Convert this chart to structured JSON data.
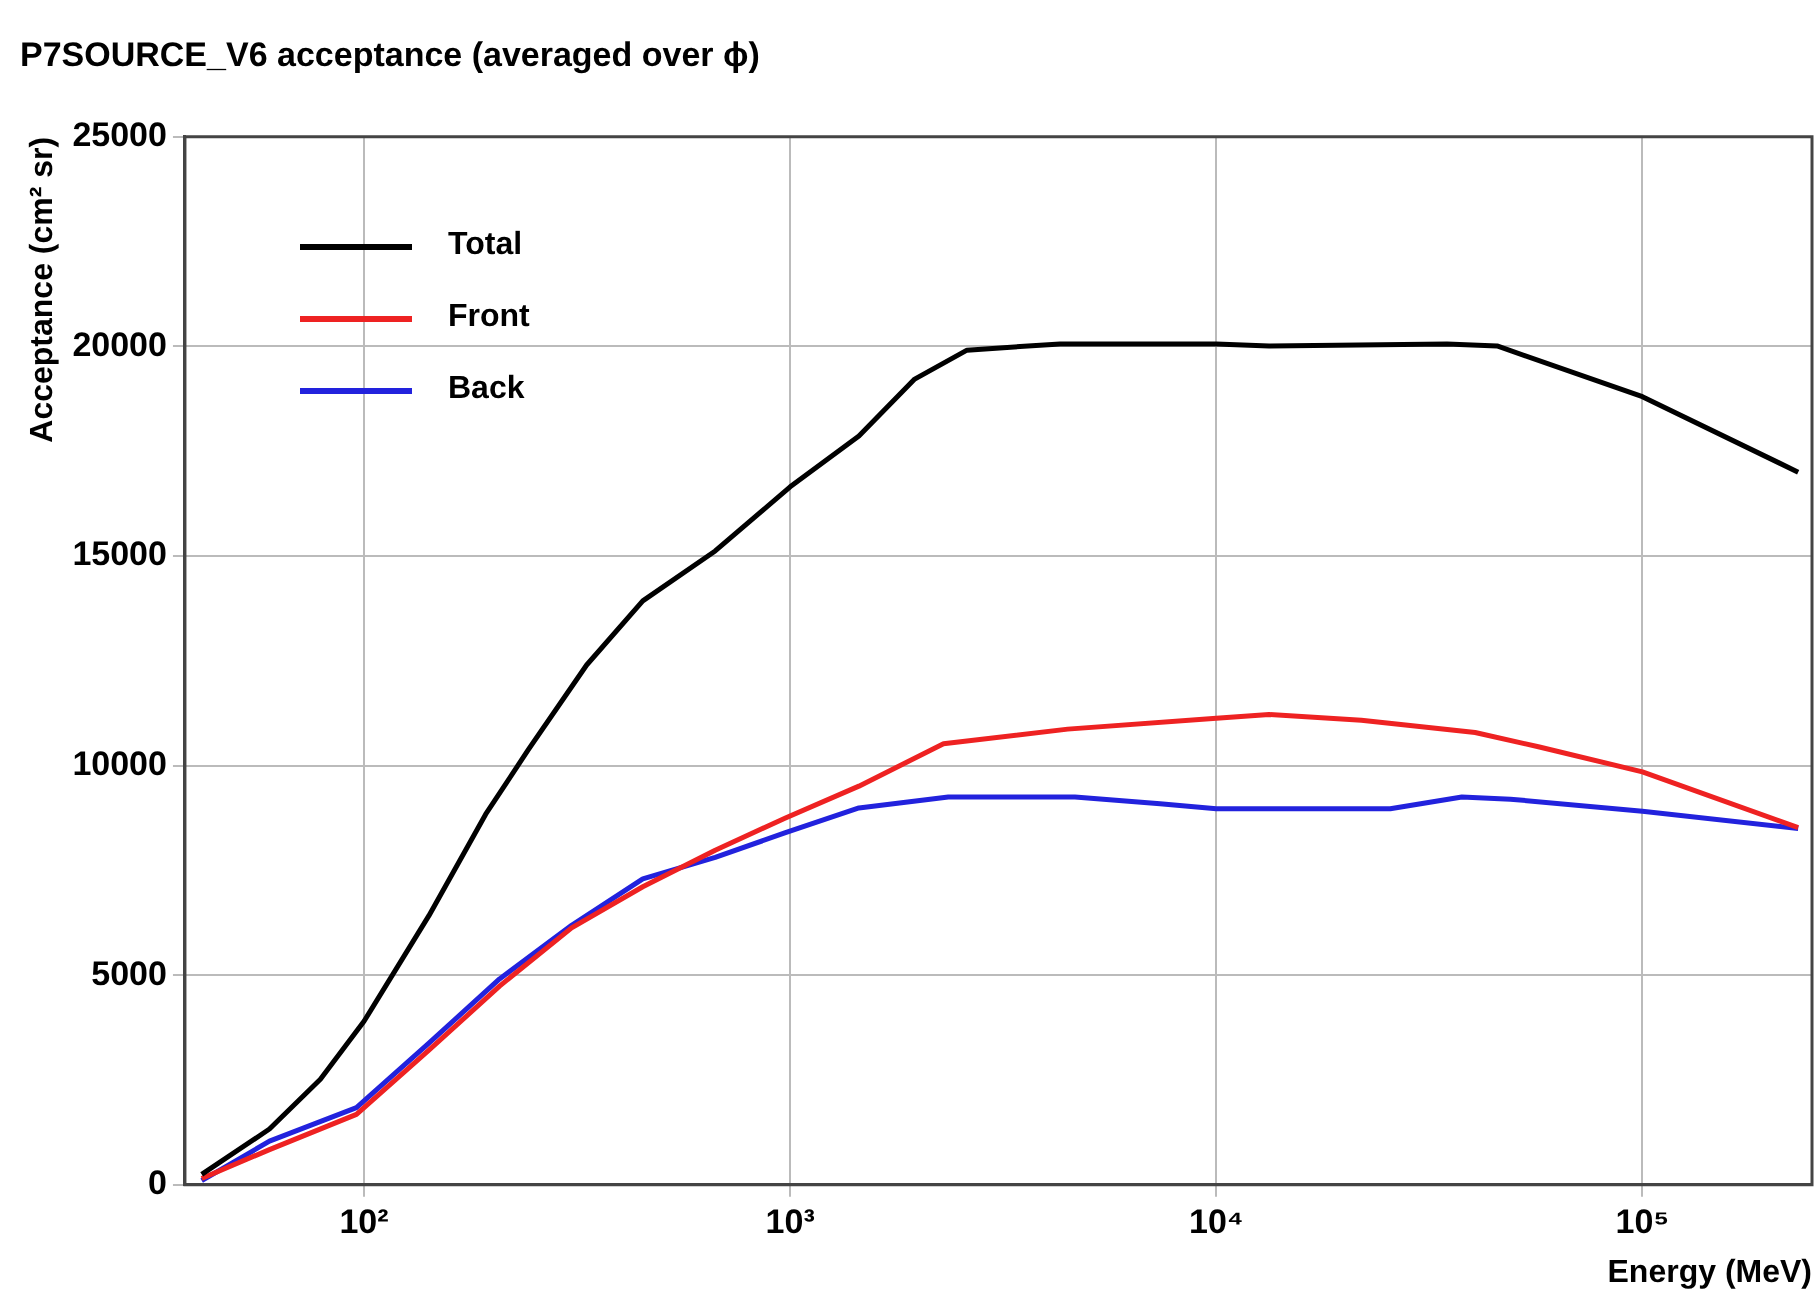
{
  "chart_data": {
    "type": "line",
    "title": "P7SOURCE_V6 acceptance (averaged over ϕ)",
    "xlabel": "Energy (MeV)",
    "ylabel": "Acceptance (cm² sr)",
    "log": "x",
    "xlim": [
      38,
      250000
    ],
    "xticks": [
      {
        "value": 100,
        "label": "10²"
      },
      {
        "value": 1000,
        "label": "10³"
      },
      {
        "value": 10000,
        "label": "10⁴"
      },
      {
        "value": 100000,
        "label": "10⁵"
      }
    ],
    "ylim": [
      0,
      25000
    ],
    "yticks": [
      0,
      5000,
      10000,
      15000,
      20000,
      25000
    ],
    "grid": true,
    "legend": "top left",
    "marker": "none",
    "line_style": "solid",
    "series": [
      {
        "name": "Total",
        "color": "#000000",
        "x": [
          41.6,
          60,
          79,
          100,
          142,
          193,
          243,
          333,
          451,
          667,
          1000,
          1450,
          1960,
          2600,
          4300,
          10000,
          13300,
          34800,
          45600,
          100000,
          232000
        ],
        "values": [
          250,
          1330,
          2520,
          3900,
          6420,
          8840,
          10380,
          12400,
          13930,
          15120,
          16650,
          17860,
          19220,
          19910,
          20060,
          20060,
          20010,
          20060,
          20010,
          18800,
          17000
        ]
      },
      {
        "name": "Front",
        "color": "#ee2222",
        "x": [
          41.6,
          60,
          96,
          142,
          208,
          307,
          451,
          667,
          975,
          1450,
          2290,
          4480,
          10000,
          13300,
          21900,
          40500,
          57000,
          100000,
          232000
        ],
        "values": [
          150,
          840,
          1680,
          3210,
          4740,
          6130,
          7110,
          7980,
          8750,
          9510,
          10520,
          10870,
          11130,
          11220,
          11080,
          10790,
          10450,
          9850,
          8520
        ]
      },
      {
        "name": "Back",
        "color": "#2222dd",
        "x": [
          41.6,
          60,
          96,
          142,
          208,
          307,
          451,
          667,
          975,
          1450,
          2350,
          4660,
          7380,
          10000,
          25600,
          37700,
          49000,
          100000,
          232000
        ],
        "values": [
          100,
          1040,
          1840,
          3380,
          4910,
          6190,
          7300,
          7810,
          8400,
          8990,
          9250,
          9250,
          9090,
          8970,
          8970,
          9250,
          9200,
          8910,
          8500
        ]
      }
    ]
  }
}
